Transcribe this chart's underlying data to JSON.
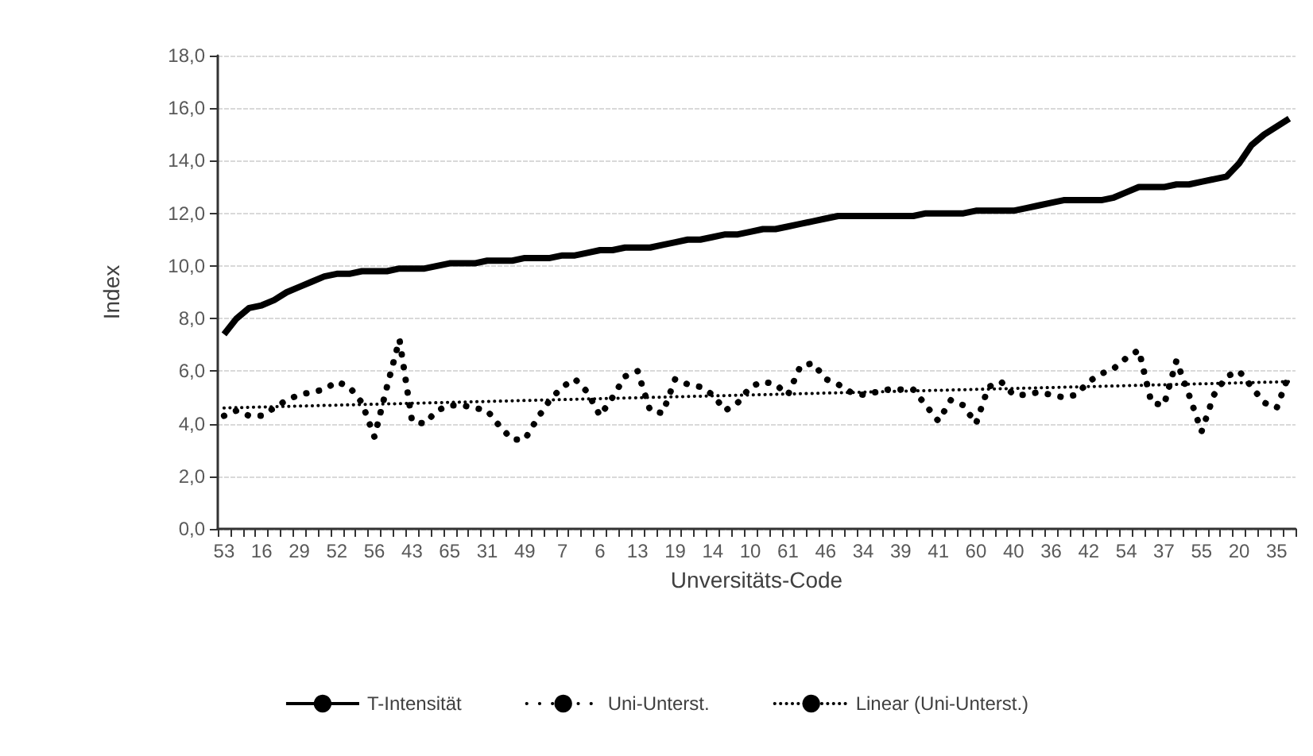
{
  "chart_data": {
    "type": "line",
    "xlabel": "Unversitäts-Code",
    "ylabel": "Index",
    "categories": [
      "53",
      null,
      null,
      "16",
      null,
      null,
      "29",
      null,
      null,
      "52",
      null,
      null,
      "56",
      null,
      null,
      "43",
      null,
      null,
      "65",
      null,
      null,
      "31",
      null,
      null,
      "49",
      null,
      null,
      "7",
      null,
      null,
      "6",
      null,
      null,
      "13",
      null,
      null,
      "19",
      null,
      null,
      "14",
      null,
      null,
      "10",
      null,
      null,
      "61",
      null,
      null,
      "46",
      null,
      null,
      "34",
      null,
      null,
      "39",
      null,
      null,
      "41",
      null,
      null,
      "60",
      null,
      null,
      "40",
      null,
      null,
      "36",
      null,
      null,
      "42",
      null,
      null,
      "54",
      null,
      null,
      "37",
      null,
      null,
      "55",
      null,
      null,
      "20",
      null,
      null,
      "35",
      null
    ],
    "series": [
      {
        "name": "T-Intensität",
        "color": "#000000",
        "line_style": "solid",
        "values": [
          7.4,
          8.0,
          8.4,
          8.5,
          8.7,
          9.0,
          9.2,
          9.4,
          9.6,
          9.7,
          9.7,
          9.8,
          9.8,
          9.8,
          9.9,
          9.9,
          9.9,
          10.0,
          10.1,
          10.1,
          10.1,
          10.2,
          10.2,
          10.2,
          10.3,
          10.3,
          10.3,
          10.4,
          10.4,
          10.5,
          10.6,
          10.6,
          10.7,
          10.7,
          10.7,
          10.8,
          10.9,
          11.0,
          11.0,
          11.1,
          11.2,
          11.2,
          11.3,
          11.4,
          11.4,
          11.5,
          11.6,
          11.7,
          11.8,
          11.9,
          11.9,
          11.9,
          11.9,
          11.9,
          11.9,
          11.9,
          12.0,
          12.0,
          12.0,
          12.0,
          12.1,
          12.1,
          12.1,
          12.1,
          12.2,
          12.3,
          12.4,
          12.5,
          12.5,
          12.5,
          12.5,
          12.6,
          12.8,
          13.0,
          13.0,
          13.0,
          13.1,
          13.1,
          13.2,
          13.3,
          13.4,
          13.9,
          14.6,
          15.0,
          15.3,
          15.6
        ]
      },
      {
        "name": "Uni-Unterst.",
        "color": "#000000",
        "line_style": "dotted",
        "values": [
          4.3,
          4.5,
          4.3,
          4.3,
          4.6,
          4.9,
          5.1,
          5.2,
          5.3,
          5.6,
          5.4,
          4.8,
          3.5,
          5.4,
          7.2,
          4.1,
          4.0,
          4.5,
          4.7,
          4.7,
          4.6,
          4.5,
          3.9,
          3.4,
          3.4,
          4.2,
          4.9,
          5.4,
          5.7,
          5.2,
          4.3,
          5.0,
          5.8,
          6.0,
          4.5,
          4.4,
          5.7,
          5.5,
          5.4,
          5.1,
          4.5,
          4.8,
          5.4,
          5.6,
          5.5,
          5.1,
          6.2,
          6.3,
          5.7,
          5.5,
          5.2,
          5.1,
          5.2,
          5.3,
          5.3,
          5.3,
          4.7,
          4.1,
          4.9,
          4.7,
          4.0,
          5.4,
          5.6,
          5.1,
          5.1,
          5.2,
          5.1,
          5.0,
          5.1,
          5.6,
          5.9,
          6.1,
          6.5,
          6.8,
          4.8,
          4.7,
          6.4,
          5.1,
          3.7,
          5.1,
          5.8,
          6.0,
          5.4,
          4.8,
          4.6,
          5.9
        ]
      },
      {
        "name": "Linear (Uni-Unterst.)",
        "color": "#000000",
        "line_style": "dotted",
        "values": [
          4.6,
          null,
          null,
          null,
          null,
          null,
          null,
          null,
          null,
          null,
          null,
          null,
          null,
          null,
          null,
          null,
          null,
          null,
          null,
          null,
          null,
          null,
          null,
          null,
          null,
          null,
          null,
          null,
          null,
          null,
          null,
          null,
          null,
          null,
          null,
          null,
          null,
          null,
          null,
          null,
          null,
          null,
          null,
          null,
          null,
          null,
          null,
          null,
          null,
          null,
          null,
          null,
          null,
          null,
          null,
          null,
          null,
          null,
          null,
          null,
          null,
          null,
          null,
          null,
          null,
          null,
          null,
          null,
          null,
          null,
          null,
          null,
          null,
          null,
          null,
          null,
          null,
          null,
          null,
          null,
          null,
          null,
          null,
          null,
          null,
          5.6
        ]
      }
    ],
    "ylim": [
      0,
      18
    ],
    "yticks": [
      {
        "value": 0,
        "label": "0,0"
      },
      {
        "value": 2,
        "label": "2,0"
      },
      {
        "value": 4,
        "label": "4,0"
      },
      {
        "value": 6,
        "label": "6,0"
      },
      {
        "value": 8,
        "label": "8,0"
      },
      {
        "value": 10,
        "label": "10,0"
      },
      {
        "value": 12,
        "label": "12,0"
      },
      {
        "value": 14,
        "label": "14,0"
      },
      {
        "value": 16,
        "label": "16,0"
      },
      {
        "value": 18,
        "label": "18,0"
      }
    ],
    "grid": "y",
    "legend": "bottom",
    "marker": "none"
  }
}
